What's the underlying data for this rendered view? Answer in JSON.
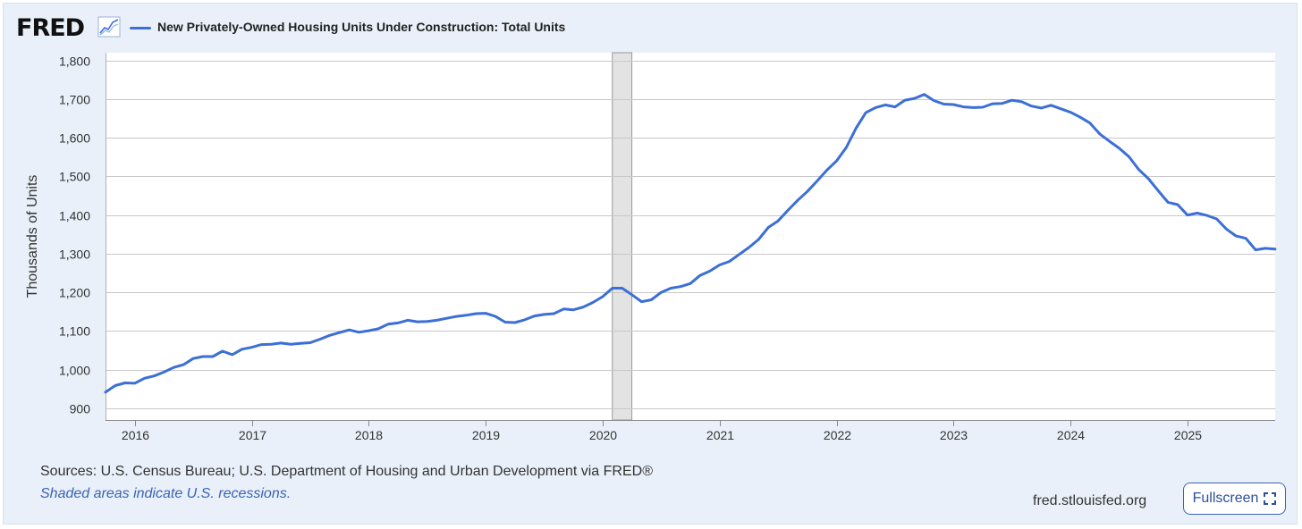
{
  "header": {
    "brand": "FRED",
    "legend_label": "New Privately-Owned Housing Units Under Construction: Total Units"
  },
  "footer": {
    "sources": "Sources: U.S. Census Bureau; U.S. Department of Housing and Urban Development via FRED®",
    "recession_note": "Shaded areas indicate U.S. recessions.",
    "site": "fred.stlouisfed.org",
    "fullscreen_label": "Fullscreen"
  },
  "colors": {
    "series": "#3c6fd6",
    "recession": "#e3e3e3",
    "background": "#e9f0f9",
    "grid": "#c8c8c8"
  },
  "chart_data": {
    "type": "line",
    "title": "New Privately-Owned Housing Units Under Construction: Total Units",
    "xlabel": "",
    "ylabel": "Thousands of Units",
    "xlim": [
      2015.75,
      2025.75
    ],
    "ylim": [
      870,
      1820
    ],
    "yticks": [
      900,
      1000,
      1100,
      1200,
      1300,
      1400,
      1500,
      1600,
      1700,
      1800
    ],
    "ytick_labels": [
      "900",
      "1,000",
      "1,100",
      "1,200",
      "1,300",
      "1,400",
      "1,500",
      "1,600",
      "1,700",
      "1,800"
    ],
    "xticks": [
      2016,
      2017,
      2018,
      2019,
      2020,
      2021,
      2022,
      2023,
      2024,
      2025
    ],
    "xtick_labels": [
      "2016",
      "2017",
      "2018",
      "2019",
      "2020",
      "2021",
      "2022",
      "2023",
      "2024",
      "2025"
    ],
    "grid": true,
    "recessions": [
      {
        "start": 2020.083,
        "end": 2020.25
      }
    ],
    "series": [
      {
        "name": "New Privately-Owned Housing Units Under Construction: Total Units",
        "start": 2015.75,
        "step": 0.08333,
        "values": [
          942,
          959,
          966,
          965,
          978,
          984,
          994,
          1006,
          1013,
          1029,
          1034,
          1034,
          1048,
          1039,
          1053,
          1058,
          1065,
          1066,
          1069,
          1066,
          1068,
          1070,
          1079,
          1089,
          1096,
          1103,
          1097,
          1101,
          1106,
          1118,
          1121,
          1128,
          1124,
          1125,
          1128,
          1133,
          1138,
          1141,
          1145,
          1146,
          1138,
          1123,
          1122,
          1129,
          1139,
          1143,
          1145,
          1157,
          1155,
          1162,
          1174,
          1189,
          1211,
          1211,
          1194,
          1176,
          1181,
          1200,
          1211,
          1215,
          1223,
          1244,
          1255,
          1271,
          1280,
          1298,
          1316,
          1337,
          1368,
          1385,
          1412,
          1438,
          1461,
          1488,
          1516,
          1540,
          1575,
          1625,
          1665,
          1678,
          1685,
          1680,
          1697,
          1702,
          1712,
          1696,
          1687,
          1686,
          1680,
          1678,
          1679,
          1688,
          1689,
          1697,
          1693,
          1682,
          1677,
          1684,
          1675,
          1666,
          1653,
          1638,
          1610,
          1591,
          1573,
          1551,
          1518,
          1494,
          1463,
          1433,
          1427,
          1400,
          1405,
          1399,
          1390,
          1364,
          1346,
          1340,
          1310,
          1314,
          1312
        ]
      }
    ]
  }
}
